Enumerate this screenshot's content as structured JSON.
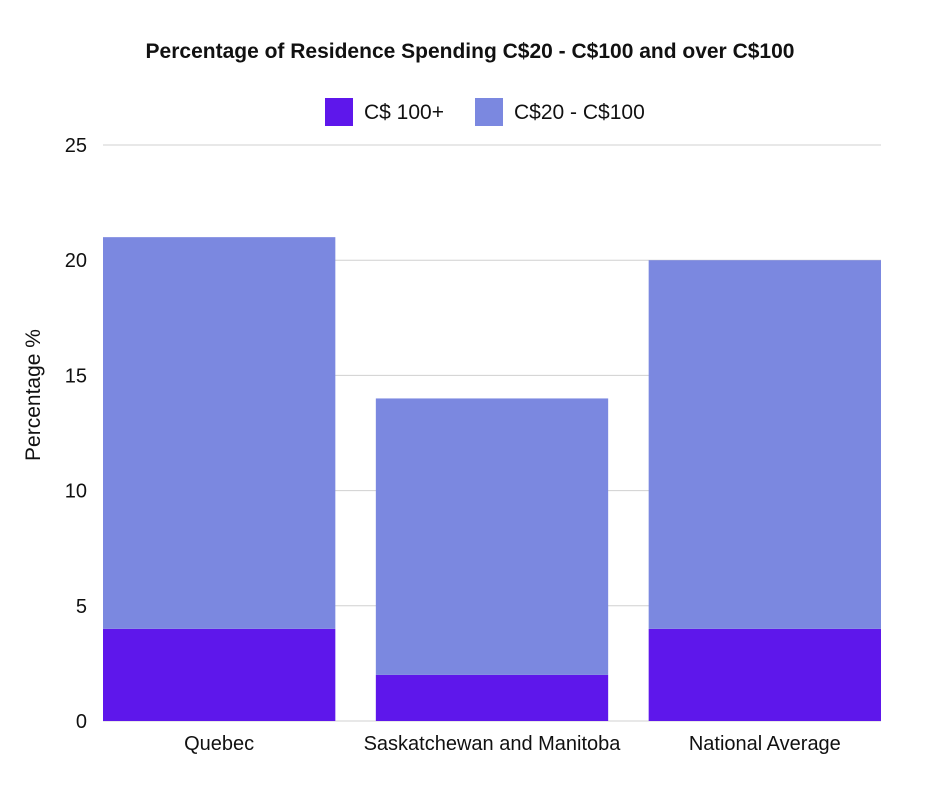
{
  "chart_data": {
    "type": "bar",
    "stacked": true,
    "title": "Percentage of Residence Spending C$20 - C$100 and over C$100",
    "xlabel": "",
    "ylabel": "Percentage %",
    "ylim": [
      0,
      25
    ],
    "yticks": [
      0,
      5,
      10,
      15,
      20,
      25
    ],
    "grid": true,
    "legend_position": "top-center",
    "categories": [
      "Quebec",
      "Saskatchewan and Manitoba",
      "National Average"
    ],
    "series": [
      {
        "name": "C$ 100+",
        "color": "#5e17eb",
        "values": [
          4,
          2,
          4
        ]
      },
      {
        "name": "C$20 - C$100",
        "color": "#7b88e0",
        "values": [
          17,
          12,
          16
        ]
      }
    ]
  }
}
